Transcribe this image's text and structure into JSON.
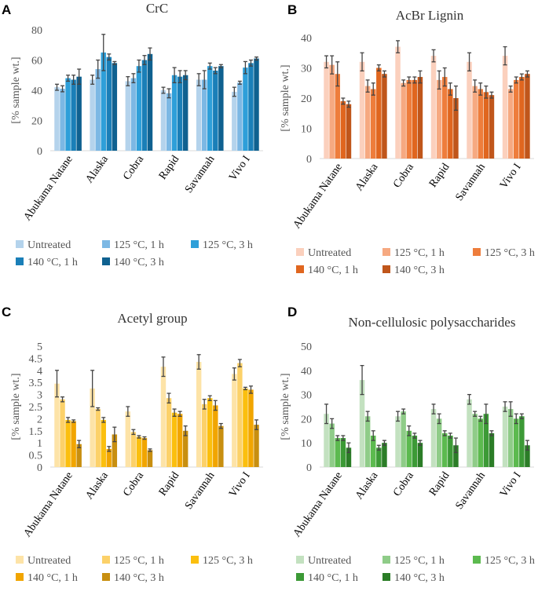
{
  "chart_data": [
    {
      "panel": "A",
      "type": "bar",
      "title": "CrC",
      "ylabel": "[% sample wt.]",
      "ylim": [
        0,
        80
      ],
      "yticks": [
        0,
        20,
        40,
        60,
        80
      ],
      "categories": [
        "Abukama Natane",
        "Alaska",
        "Cobra",
        "Rapid",
        "Savannah",
        "Vivo I"
      ],
      "series": [
        {
          "name": "Untreated",
          "color": "#b4d3ec",
          "values": [
            42,
            47,
            46,
            40,
            47,
            39
          ],
          "errors": [
            2,
            3,
            3,
            2,
            4,
            3
          ]
        },
        {
          "name": "125 °C, 1 h",
          "color": "#7cb8e4",
          "values": [
            41,
            54,
            48,
            38,
            47,
            45
          ],
          "errors": [
            2,
            6,
            3,
            3,
            6,
            1
          ]
        },
        {
          "name": "125 °C, 3 h",
          "color": "#2e9fd9",
          "values": [
            48,
            65,
            56,
            50,
            56,
            55
          ],
          "errors": [
            2,
            12,
            4,
            5,
            2,
            4
          ]
        },
        {
          "name": "140 °C, 1 h",
          "color": "#1a7fb8",
          "values": [
            47,
            62,
            60,
            49,
            53,
            58
          ],
          "errors": [
            3,
            2,
            3,
            4,
            2,
            2
          ]
        },
        {
          "name": "140 °C,  3 h",
          "color": "#0f6190",
          "values": [
            49,
            58,
            64,
            50,
            56,
            61
          ],
          "errors": [
            5,
            1,
            4,
            3,
            1,
            1
          ]
        }
      ]
    },
    {
      "panel": "B",
      "type": "bar",
      "title": "AcBr Lignin",
      "ylabel": "[% sample wt.]",
      "ylim": [
        0,
        40
      ],
      "yticks": [
        0,
        10,
        20,
        30,
        40
      ],
      "categories": [
        "Abukama Natane",
        "Alaska",
        "Cobra",
        "Rapid",
        "Savannah",
        "Vivo I"
      ],
      "series": [
        {
          "name": "Untreated",
          "color": "#fbd0bd",
          "values": [
            32,
            32,
            37,
            34,
            32,
            34
          ],
          "errors": [
            2,
            3,
            2,
            2,
            3,
            3
          ]
        },
        {
          "name": "125 °C, 1 h",
          "color": "#f6a981",
          "values": [
            31,
            24,
            25,
            26,
            24,
            23
          ],
          "errors": [
            3,
            2,
            1,
            3,
            2,
            1
          ]
        },
        {
          "name": "125 °C, 3 h",
          "color": "#ee7d3c",
          "values": [
            28,
            23,
            26,
            27,
            23,
            26
          ],
          "errors": [
            4,
            2,
            1,
            3,
            2,
            1
          ]
        },
        {
          "name": "140 °C, 1 h",
          "color": "#e0661f",
          "values": [
            19,
            30,
            26,
            23,
            22,
            27
          ],
          "errors": [
            1,
            1,
            1,
            2,
            2,
            1
          ]
        },
        {
          "name": "140 °C,  3 h",
          "color": "#c0561b",
          "values": [
            18,
            28,
            27,
            20,
            21,
            28
          ],
          "errors": [
            1,
            1,
            2,
            4,
            1,
            1
          ]
        }
      ]
    },
    {
      "panel": "C",
      "type": "bar",
      "title": "Acetyl group",
      "ylabel": "[% sample wt.]",
      "ylim": [
        0,
        5
      ],
      "yticks": [
        0,
        0.5,
        1,
        1.5,
        2,
        2.5,
        3,
        3.5,
        4,
        4.5,
        5
      ],
      "categories": [
        "Abukama Natane",
        "Alaska",
        "Cobra",
        "Rapid",
        "Savannah",
        "Vivo I"
      ],
      "series": [
        {
          "name": "Untreated",
          "color": "#fde3a7",
          "values": [
            3.45,
            3.25,
            2.3,
            4.15,
            4.35,
            3.85
          ],
          "errors": [
            0.55,
            0.75,
            0.2,
            0.4,
            0.3,
            0.25
          ]
        },
        {
          "name": "125 °C, 1 h",
          "color": "#fcd169",
          "values": [
            2.8,
            2.4,
            1.45,
            2.85,
            2.6,
            4.3
          ],
          "errors": [
            0.1,
            0.05,
            0.1,
            0.2,
            0.2,
            0.15
          ]
        },
        {
          "name": "125 °C, 3 h",
          "color": "#fbbf0e",
          "values": [
            1.95,
            1.95,
            1.25,
            2.25,
            2.85,
            3.25
          ],
          "errors": [
            0.1,
            0.1,
            0.05,
            0.15,
            0.1,
            0.05
          ]
        },
        {
          "name": "140 °C, 1 h",
          "color": "#f1a500",
          "values": [
            1.9,
            0.75,
            1.2,
            2.2,
            2.55,
            3.2
          ],
          "errors": [
            0.05,
            0.1,
            0.05,
            0.1,
            0.2,
            0.15
          ]
        },
        {
          "name": "140 °C,  3 h",
          "color": "#c88f10",
          "values": [
            0.95,
            1.35,
            0.7,
            1.5,
            1.7,
            1.75
          ],
          "errors": [
            0.15,
            0.3,
            0.05,
            0.2,
            0.1,
            0.2
          ]
        }
      ]
    },
    {
      "panel": "D",
      "type": "bar",
      "title": "Non-cellulosic polysaccharides",
      "ylabel": "[% sample wt.]",
      "ylim": [
        0,
        50
      ],
      "yticks": [
        0,
        10,
        20,
        30,
        40,
        50
      ],
      "categories": [
        "Abukama Natane",
        "Alaska",
        "Cobra",
        "Rapid",
        "Savannah",
        "Vivo I"
      ],
      "series": [
        {
          "name": "Untreated",
          "color": "#c3e1c0",
          "values": [
            22,
            36,
            21,
            24,
            28,
            25
          ],
          "errors": [
            4,
            6,
            2,
            2,
            2,
            2
          ]
        },
        {
          "name": "125 °C, 1 h",
          "color": "#8fcc88",
          "values": [
            18,
            21,
            23,
            20,
            22,
            24
          ],
          "errors": [
            2,
            2,
            1,
            2,
            1,
            3
          ]
        },
        {
          "name": "125 °C, 3 h",
          "color": "#5cba4f",
          "values": [
            12,
            13,
            15,
            14,
            20,
            20
          ],
          "errors": [
            1,
            2,
            2,
            1,
            1,
            2
          ]
        },
        {
          "name": "140 °C, 1 h",
          "color": "#3c9a36",
          "values": [
            12,
            8,
            13,
            13,
            22,
            21
          ],
          "errors": [
            1,
            1,
            1,
            1,
            4,
            1
          ]
        },
        {
          "name": "140 °C,  3 h",
          "color": "#2b7d27",
          "values": [
            8,
            10,
            10,
            9,
            14,
            9
          ],
          "errors": [
            2,
            1,
            1,
            3,
            1,
            2
          ]
        }
      ]
    }
  ]
}
